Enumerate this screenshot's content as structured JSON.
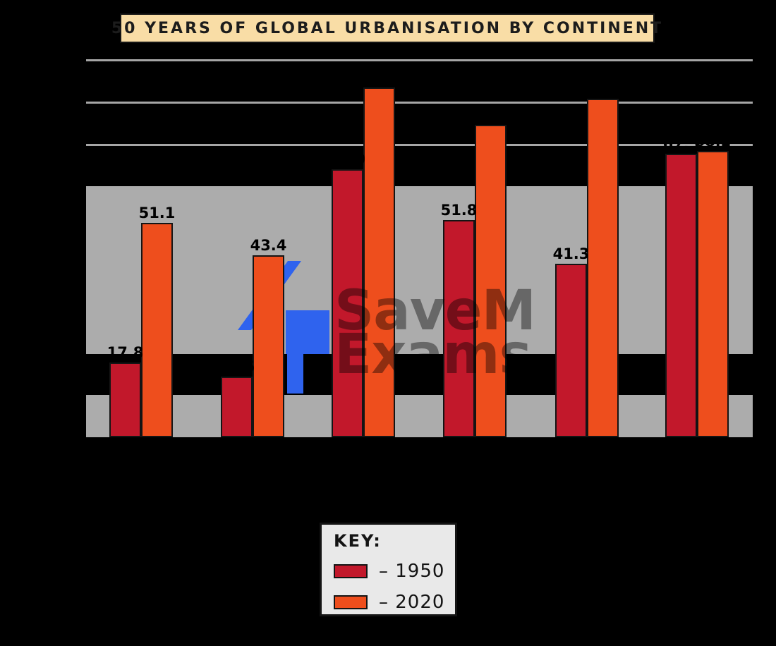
{
  "title": "50 YEARS OF GLOBAL URBANISATION BY CONTINENT",
  "colors": {
    "page_background": "#000000",
    "title_box_bg": "#f9dda6",
    "band_gray": "#acacac",
    "key_box_bg": "#e9e9e9",
    "series_1950": "#c2182b",
    "series_2020": "#ee4e1d",
    "watermark_arrow_blue": "#2f63ee"
  },
  "key": {
    "heading": "KEY:",
    "items": [
      {
        "label": "– 1950",
        "swatch_color": "#c2182b"
      },
      {
        "label": "– 2020",
        "swatch_color": "#ee4e1d"
      }
    ]
  },
  "watermark": {
    "line1": "SaveM",
    "line2": "Exams",
    "arrow_color": "#2f63ee"
  },
  "chart_data": {
    "type": "bar",
    "title": "50 YEARS OF GLOBAL URBANISATION BY CONTINENT",
    "ylabel": "",
    "xlabel": "",
    "ylim": [
      0,
      100
    ],
    "gridlines_at_percent": [
      70,
      80,
      90
    ],
    "gray_bands_percent": [
      [
        0,
        10
      ],
      [
        20,
        60
      ]
    ],
    "legend_position": "bottom-center",
    "n_groups": 6,
    "categories": [
      "",
      "",
      "",
      "",
      "",
      ""
    ],
    "categories_note": "category axis labels are not visible in the image (black text over black background)",
    "series": [
      {
        "name": "1950",
        "color": "#c2182b",
        "values": [
          17.8,
          14.5,
          63.9,
          51.8,
          41.3,
          67.5
        ]
      },
      {
        "name": "2020",
        "color": "#ee4e1d",
        "values": [
          51.1,
          43.4,
          83.3,
          74.5,
          80.6,
          68.2
        ]
      }
    ],
    "data_labels_shown": true,
    "clearly_visible_data_labels": [
      "17.8",
      "51.8"
    ]
  }
}
